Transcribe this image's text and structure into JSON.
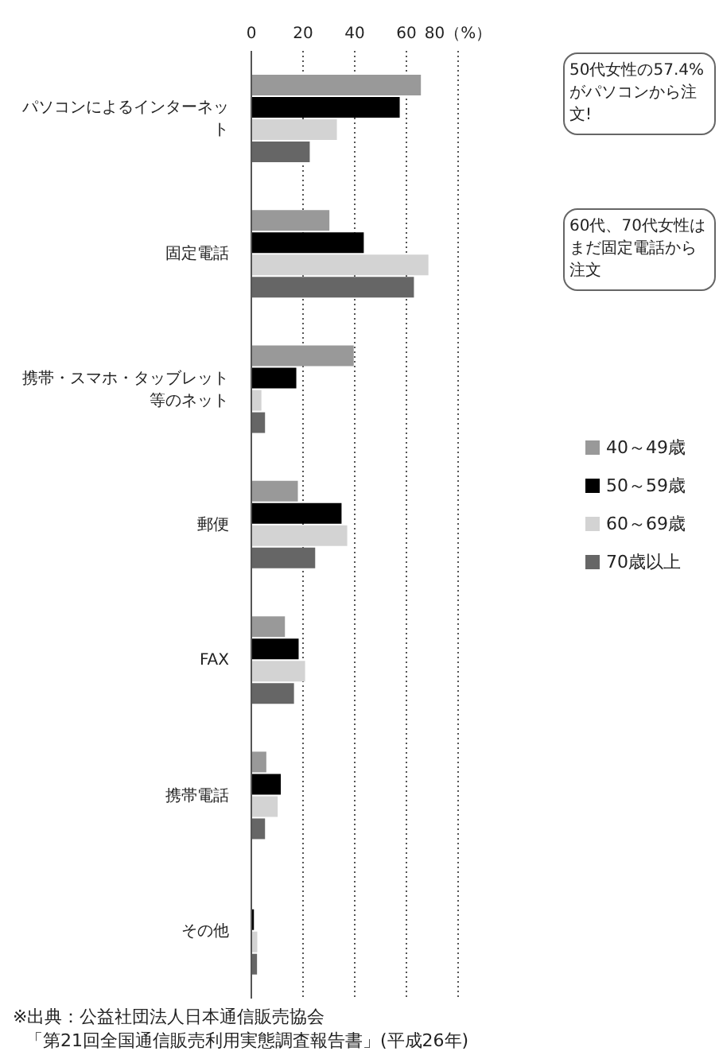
{
  "chart_data": {
    "type": "bar",
    "orientation": "horizontal",
    "categories": [
      "パソコンによるインターネット",
      "固定電話",
      "携帯・スマホ・タッブレット等のネット",
      "郵便",
      "FAX",
      "携帯電話",
      "その他"
    ],
    "series": [
      {
        "name": "40～49歳",
        "color": "#999999",
        "values": [
          65.6,
          30.2,
          39.6,
          18.0,
          13.0,
          5.8,
          0
        ]
      },
      {
        "name": "50～59歳",
        "color": "#000000",
        "values": [
          57.4,
          43.5,
          17.4,
          34.9,
          18.3,
          11.4,
          1.0
        ]
      },
      {
        "name": "60～69歳",
        "color": "#d3d3d3",
        "values": [
          33.1,
          68.5,
          3.9,
          37.1,
          20.8,
          10.2,
          2.3
        ]
      },
      {
        "name": "70歳以上",
        "color": "#666666",
        "values": [
          22.6,
          62.9,
          5.3,
          24.7,
          16.5,
          5.3,
          2.2
        ]
      }
    ],
    "xlim": [
      0,
      80
    ],
    "xticks": [
      0,
      20,
      40,
      60,
      {
        "value": 80,
        "label": "80（%）"
      }
    ],
    "grid": "x",
    "legend": "right",
    "annotations": [
      "50代女性の57.4%がパソコンから注文!",
      "60代、70代女性はまだ固定電話から注文",
      "※出典：公益社団法人日本通信販売協会",
      "「第21回全国通信販売利用実態調査報告書」(平成26年)"
    ]
  }
}
